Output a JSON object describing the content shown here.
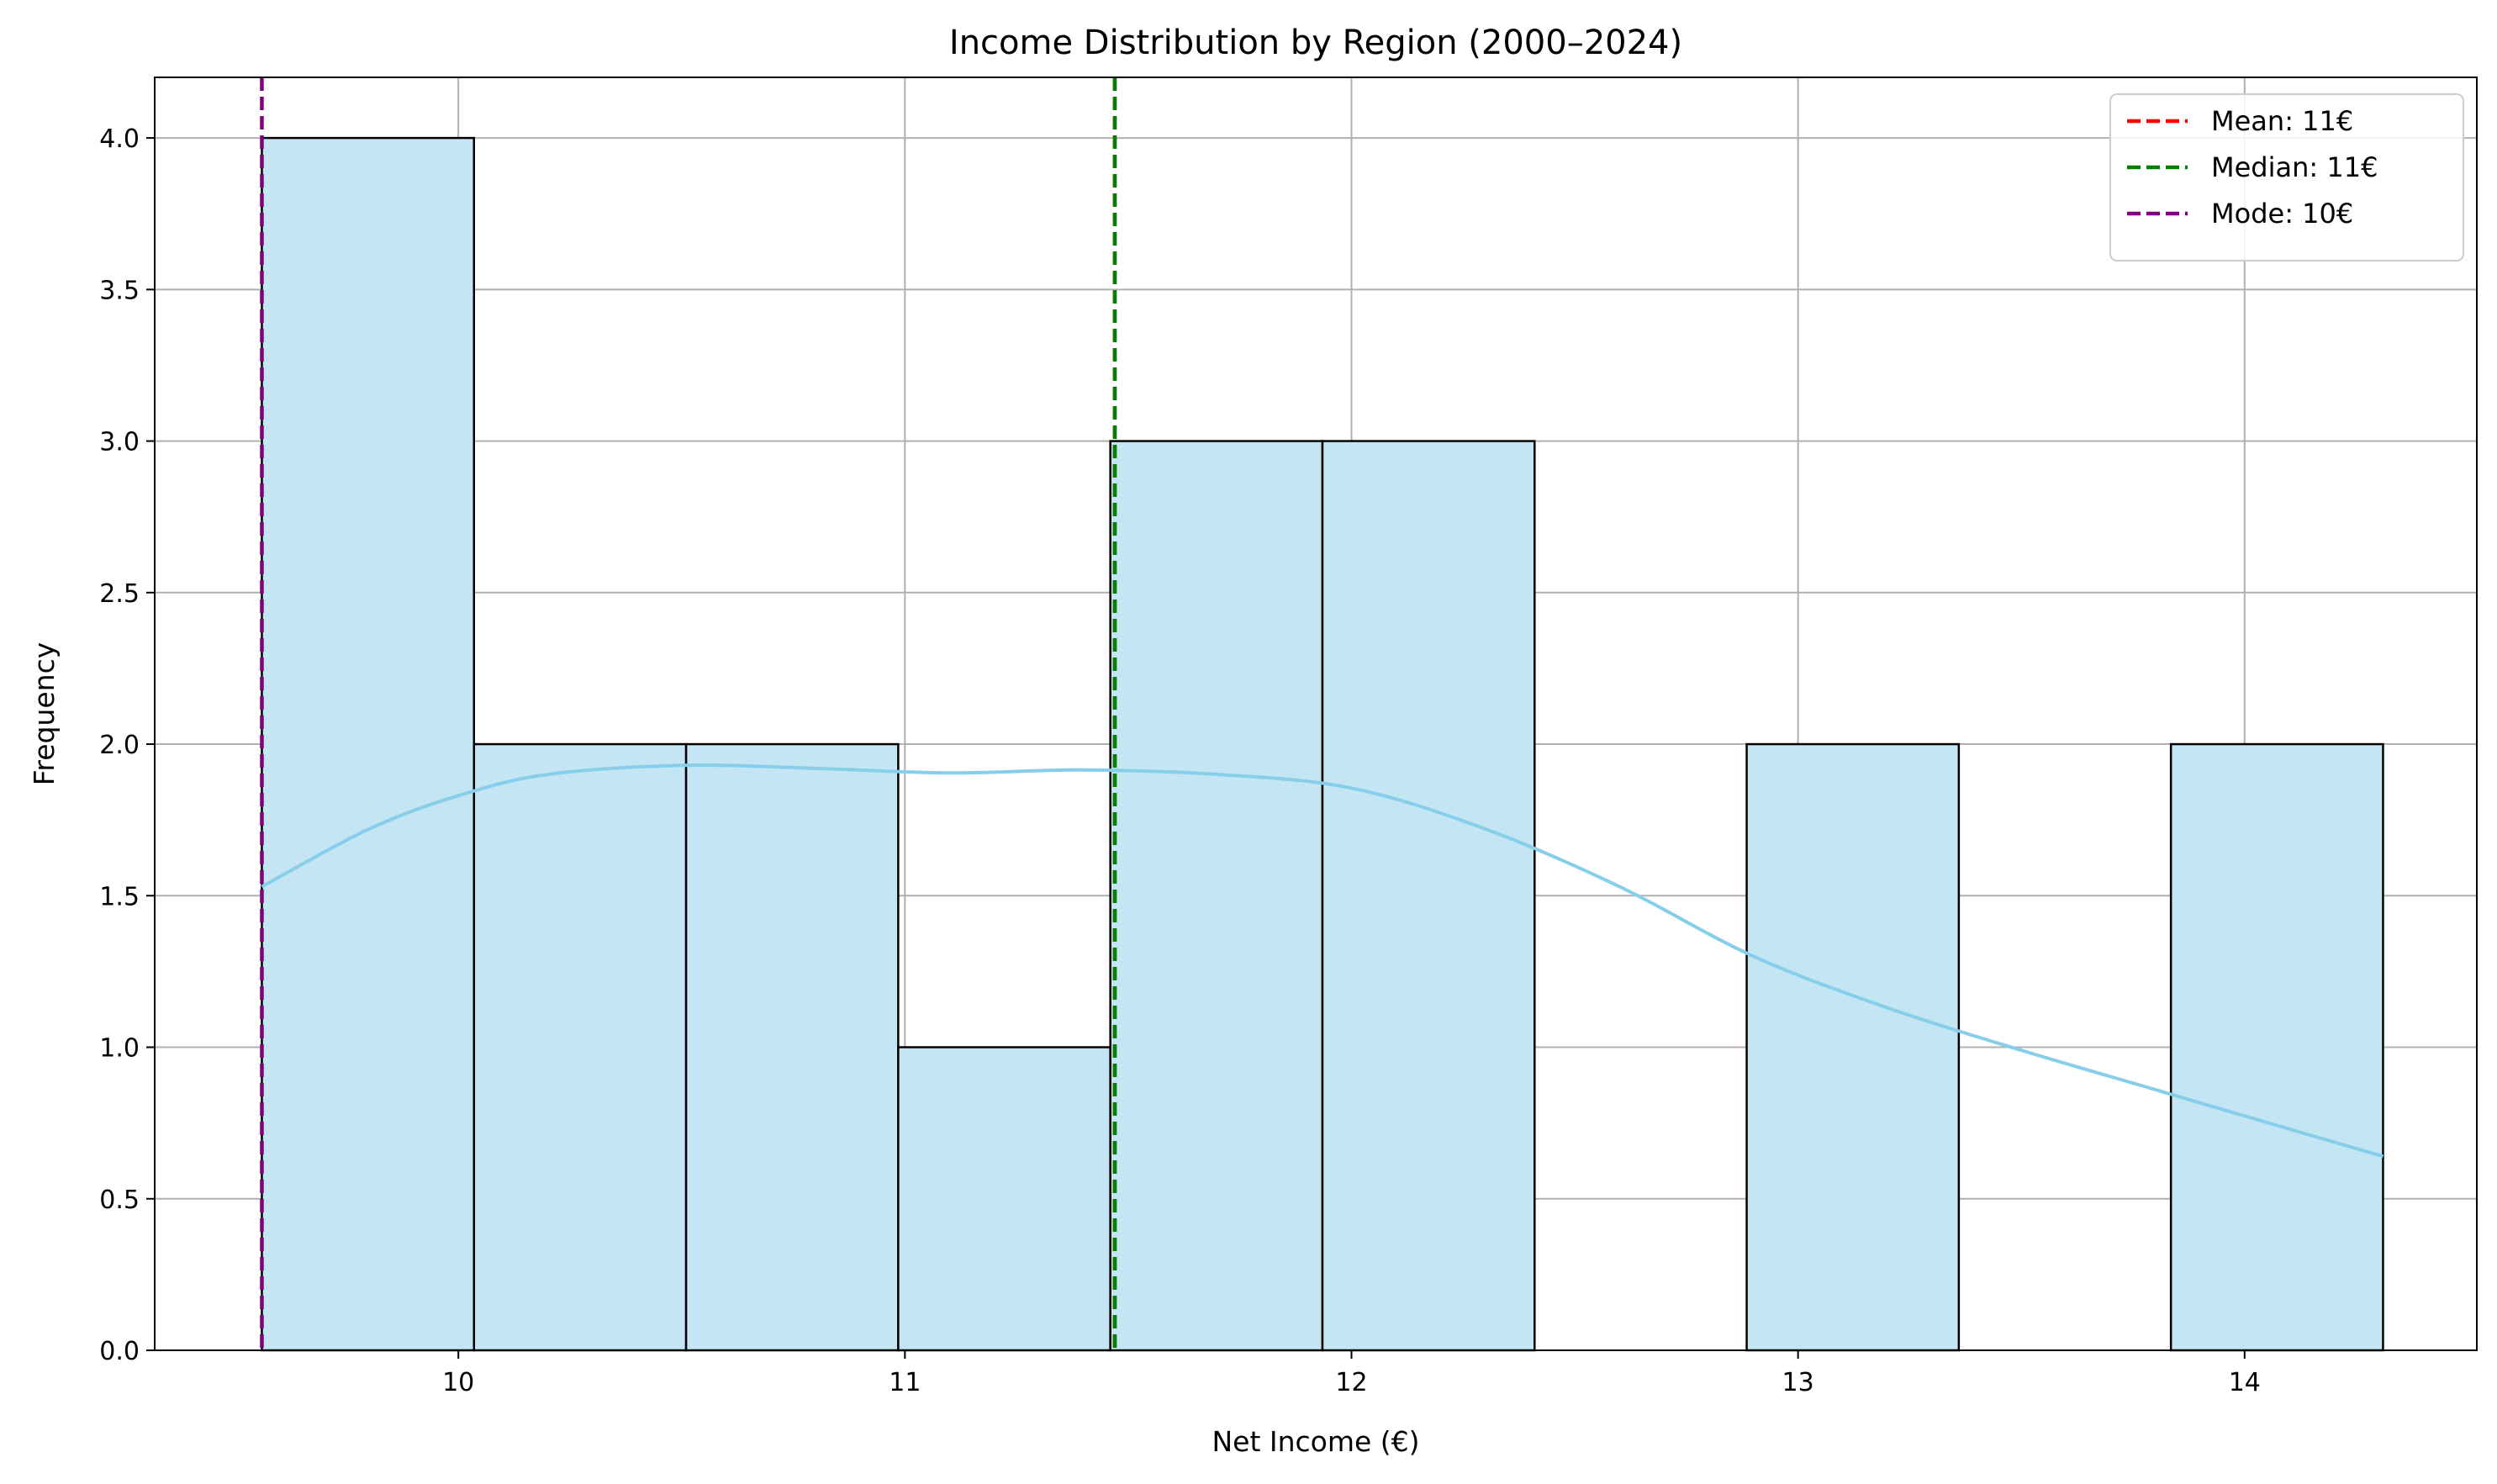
{
  "chart_data": {
    "type": "histogram",
    "title": "Income Distribution by Region (2000–2024)",
    "xlabel": "Net Income (€)",
    "ylabel": "Frequency",
    "xlim": [
      9.32,
      14.52
    ],
    "ylim": [
      0,
      4.2
    ],
    "grid": true,
    "x_ticks": [
      10,
      11,
      12,
      13,
      14
    ],
    "y_ticks": [
      0.0,
      0.5,
      1.0,
      1.5,
      2.0,
      2.5,
      3.0,
      3.5,
      4.0
    ],
    "x_tick_labels": [
      "10",
      "11",
      "12",
      "13",
      "14"
    ],
    "y_tick_labels": [
      "0.0",
      "0.5",
      "1.0",
      "1.5",
      "2.0",
      "2.5",
      "3.0",
      "3.5",
      "4.0"
    ],
    "bins": [
      {
        "start": 9.56,
        "end": 10.035,
        "count": 4
      },
      {
        "start": 10.035,
        "end": 10.51,
        "count": 2
      },
      {
        "start": 10.51,
        "end": 10.985,
        "count": 2
      },
      {
        "start": 10.985,
        "end": 11.46,
        "count": 1
      },
      {
        "start": 11.46,
        "end": 11.935,
        "count": 3
      },
      {
        "start": 11.935,
        "end": 12.41,
        "count": 3
      },
      {
        "start": 12.41,
        "end": 12.885,
        "count": 0
      },
      {
        "start": 12.885,
        "end": 13.36,
        "count": 2
      },
      {
        "start": 13.36,
        "end": 13.835,
        "count": 0
      },
      {
        "start": 13.835,
        "end": 14.31,
        "count": 2
      }
    ],
    "kde": {
      "x": [
        9.56,
        9.8,
        10.0,
        10.2,
        10.5,
        10.8,
        11.1,
        11.4,
        11.7,
        12.0,
        12.3,
        12.6,
        12.9,
        13.2,
        13.5,
        13.8,
        14.1,
        14.31
      ],
      "y": [
        1.53,
        1.72,
        1.83,
        1.9,
        1.93,
        1.92,
        1.905,
        1.915,
        1.9,
        1.855,
        1.72,
        1.53,
        1.3,
        1.13,
        0.99,
        0.86,
        0.73,
        0.64
      ]
    },
    "reference_lines": [
      {
        "name": "Mean: 11€",
        "x": 11.47,
        "color": "#ff0000"
      },
      {
        "name": "Median: 11€",
        "x": 11.47,
        "color": "#008000"
      },
      {
        "name": "Mode: 10€",
        "x": 9.56,
        "color": "#800080"
      }
    ],
    "legend_position": "top-right",
    "colors": {
      "bar_fill": "#c3e5f4",
      "bar_edge": "#000000",
      "kde_line": "#87ceeb",
      "grid": "#b0b0b0"
    }
  }
}
